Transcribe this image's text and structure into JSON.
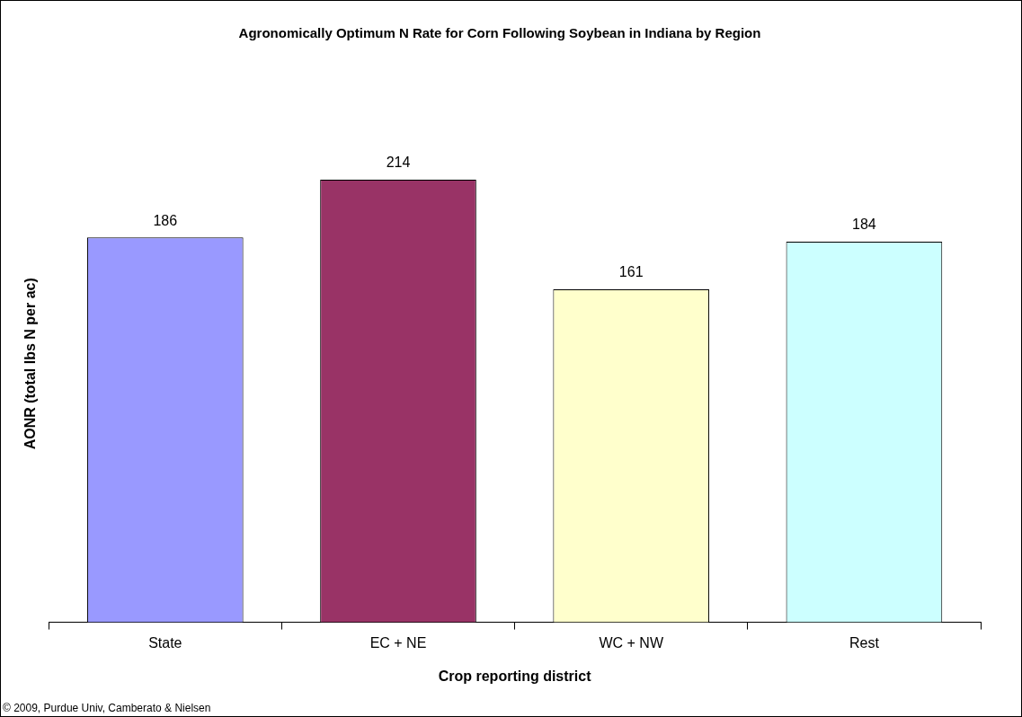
{
  "chart_data": {
    "type": "bar",
    "title": "Agronomically Optimum N Rate for Corn Following Soybean in Indiana by Region",
    "xlabel": "Crop reporting district",
    "ylabel": "AONR (total lbs N per ac)",
    "categories": [
      "State",
      "EC + NE",
      "WC + NW",
      "Rest"
    ],
    "values": [
      186,
      214,
      161,
      184
    ],
    "colors": [
      "#9999ff",
      "#993366",
      "#ffffcc",
      "#ccffff"
    ],
    "data_labels": true,
    "grid": false,
    "legend": false,
    "tick_labels": "x",
    "annotations": [
      "© 2009, Purdue Univ, Camberato & Nielsen"
    ]
  }
}
